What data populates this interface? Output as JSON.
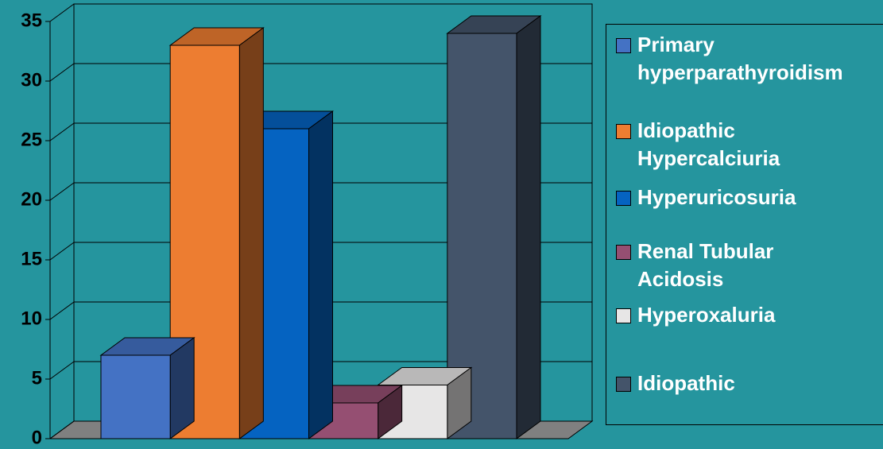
{
  "chart_data": {
    "type": "bar3d",
    "categories": [
      null
    ],
    "series": [
      {
        "name": "Primary hyperparathyroidism",
        "color": "#4472c4",
        "values": [
          7
        ]
      },
      {
        "name": "Idiopathic Hypercalciuria",
        "color": "#ed7d31",
        "values": [
          33
        ]
      },
      {
        "name": "Hyperuricosuria",
        "color": "#0563c1",
        "values": [
          26
        ]
      },
      {
        "name": "Renal Tubular Acidosis",
        "color": "#954f72",
        "values": [
          3
        ]
      },
      {
        "name": "Hyperoxaluria",
        "color": "#e7e6e6",
        "values": [
          4.5
        ]
      },
      {
        "name": "Idiopathic",
        "color": "#44546a",
        "values": [
          34
        ]
      }
    ],
    "ylim": [
      0,
      35
    ],
    "yticks": [
      0,
      5,
      10,
      15,
      20,
      25,
      30,
      35
    ],
    "grid": true,
    "legend": "right"
  }
}
